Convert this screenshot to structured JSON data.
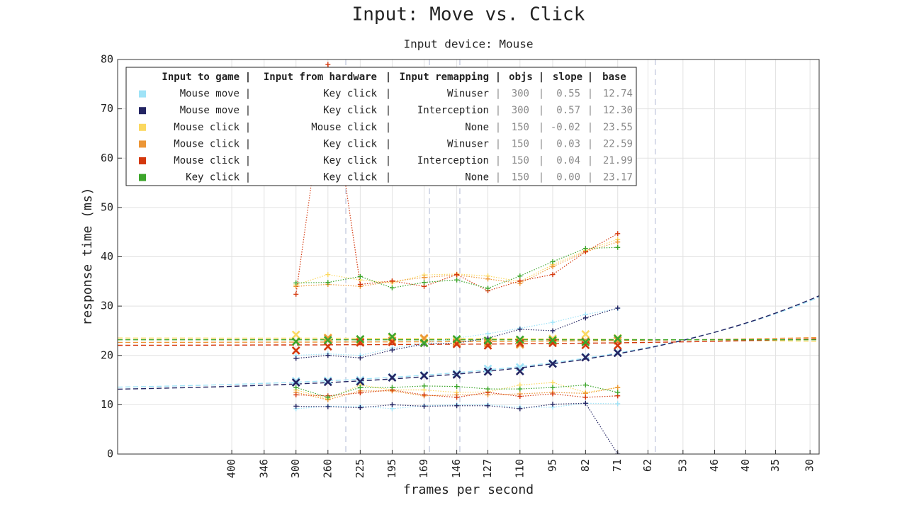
{
  "chart_data": {
    "type": "line",
    "title": "Input: Move vs. Click",
    "subtitle": "Input device: Mouse",
    "x_label": "frames per second",
    "y_label": "response time (ms)",
    "x": [
      300,
      260,
      225,
      195,
      169,
      146,
      127,
      110,
      95,
      82,
      71
    ],
    "xscale": "log",
    "xlim": [
      667,
      28.8
    ],
    "xticks": [
      400,
      346,
      300,
      260,
      225,
      195,
      169,
      146,
      127,
      110,
      95,
      82,
      71,
      62,
      53,
      46,
      40,
      35,
      30
    ],
    "ylim": [
      0,
      80
    ],
    "yticks": [
      0,
      10,
      20,
      30,
      40,
      50,
      60,
      70,
      80
    ],
    "grid": true,
    "vlines": [
      240,
      165,
      144,
      60
    ],
    "legend": {
      "position": "upper left",
      "separator": "|",
      "columns": [
        "Input to game",
        "Input from hardware",
        "Input remapping",
        "objs",
        "slope",
        "base"
      ]
    },
    "series": [
      {
        "input_to_game": "Mouse move",
        "input_from_hardware": "Key click",
        "input_remapping": "Winuser",
        "objs": 300,
        "slope": 0.55,
        "base": 12.74,
        "color": "#9fe3f7",
        "median": [
          14.8,
          14.9,
          15.0,
          15.6,
          16.0,
          16.3,
          17.3,
          17.6,
          18.4,
          19.7,
          20.6
        ],
        "upper": [
          20.0,
          20.3,
          20.0,
          21.5,
          22.5,
          23.5,
          24.4,
          25.5,
          26.7,
          28.3,
          29.5
        ],
        "lower": [
          9.2,
          9.7,
          9.7,
          9.2,
          9.8,
          10.0,
          10.0,
          9.5,
          9.5,
          10.3,
          10.2
        ]
      },
      {
        "input_to_game": "Mouse move",
        "input_from_hardware": "Key click",
        "input_remapping": "Interception",
        "objs": 300,
        "slope": 0.57,
        "base": 12.3,
        "base_label": "12.30",
        "color": "#242563",
        "median": [
          14.5,
          14.6,
          14.7,
          15.5,
          15.9,
          16.1,
          16.7,
          16.8,
          18.3,
          19.6,
          20.5
        ],
        "upper": [
          19.4,
          20.0,
          19.5,
          21.1,
          22.3,
          22.5,
          23.5,
          25.3,
          25.0,
          27.6,
          29.6
        ],
        "lower": [
          9.7,
          9.6,
          9.4,
          10.0,
          9.7,
          9.8,
          9.8,
          9.2,
          10.1,
          10.3,
          0
        ]
      },
      {
        "input_to_game": "Mouse click",
        "input_from_hardware": "Mouse click",
        "input_remapping": "None",
        "objs": 150,
        "slope": -0.02,
        "base": 23.55,
        "color": "#fbd860",
        "median": [
          24.2,
          23.6,
          23.2,
          23.6,
          23.3,
          23.1,
          23.0,
          23.0,
          23.4,
          24.3,
          23.5
        ],
        "upper": [
          34.3,
          36.4,
          35.3,
          34.7,
          36.3,
          36.5,
          36.1,
          35.0,
          38.4,
          41.3,
          43.5
        ],
        "lower": [
          13.0,
          11.2,
          14.0,
          13.0,
          13.0,
          12.5,
          12.6,
          14.0,
          14.5,
          12.5,
          13.5
        ]
      },
      {
        "input_to_game": "Mouse click",
        "input_from_hardware": "Key click",
        "input_remapping": "Winuser",
        "objs": 150,
        "slope": 0.03,
        "base": 22.59,
        "color": "#ec9636",
        "median": [
          22.8,
          23.5,
          22.8,
          23.0,
          23.5,
          22.6,
          22.5,
          22.2,
          22.8,
          22.9,
          23.0
        ],
        "upper": [
          34.0,
          34.4,
          34.0,
          35.0,
          35.8,
          36.3,
          35.5,
          34.6,
          38.0,
          41.0,
          43.0
        ],
        "lower": [
          12.5,
          11.0,
          12.8,
          12.8,
          11.8,
          12.0,
          12.0,
          12.2,
          12.5,
          12.3,
          13.5
        ]
      },
      {
        "input_to_game": "Mouse click",
        "input_from_hardware": "Key click",
        "input_remapping": "Interception",
        "objs": 150,
        "slope": 0.04,
        "base": 21.99,
        "color": "#d4380d",
        "median": [
          21.0,
          21.8,
          22.6,
          22.7,
          22.5,
          22.3,
          22.0,
          22.5,
          22.5,
          22.1,
          22.0
        ],
        "upper": [
          32.4,
          79.0,
          34.4,
          35.1,
          34.0,
          36.4,
          33.1,
          35.1,
          36.4,
          41.0,
          44.7
        ],
        "lower": [
          12.0,
          11.8,
          12.4,
          13.0,
          12.0,
          11.5,
          12.5,
          11.7,
          12.2,
          11.5,
          11.8
        ]
      },
      {
        "input_to_game": "Key click",
        "input_from_hardware": "Key click",
        "input_remapping": "None",
        "objs": 150,
        "slope": 0,
        "slope_label": "0.00",
        "base": 23.17,
        "color": "#3ca52b",
        "median": [
          22.8,
          23.1,
          23.3,
          23.8,
          22.5,
          23.3,
          23.0,
          23.2,
          23.1,
          22.7,
          23.4
        ],
        "upper": [
          34.7,
          34.8,
          36.0,
          33.7,
          34.8,
          35.3,
          33.6,
          36.1,
          39.0,
          41.7,
          41.9
        ],
        "lower": [
          13.5,
          11.5,
          13.5,
          13.5,
          13.8,
          13.7,
          13.2,
          13.2,
          13.5,
          14.0,
          12.5
        ]
      }
    ]
  }
}
